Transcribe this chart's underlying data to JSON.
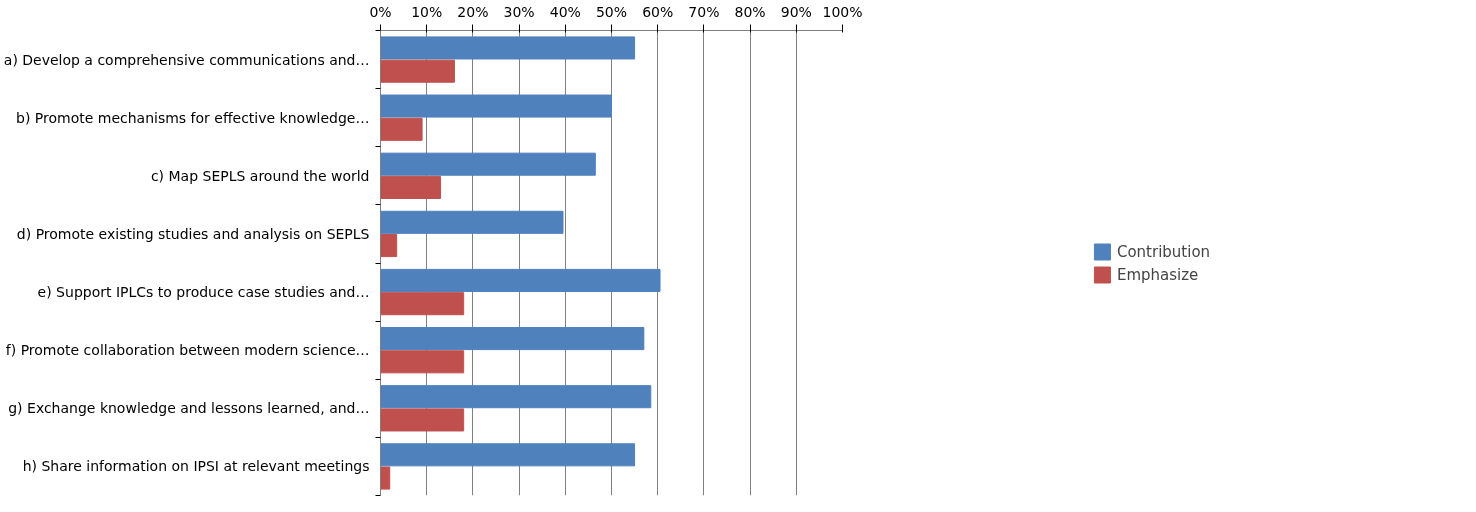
{
  "chart_data": {
    "type": "bar",
    "orientation": "horizontal",
    "categories": [
      "a) Develop a comprehensive communications and…",
      "b) Promote mechanisms for effective knowledge…",
      "c) Map SEPLS around the world",
      "d) Promote existing studies and analysis on SEPLS",
      "e) Support IPLCs to produce case studies and…",
      "f) Promote collaboration between modern science…",
      "g) Exchange knowledge and lessons learned, and…",
      "h) Share information on IPSI at relevant meetings"
    ],
    "series": [
      {
        "name": "Contribution",
        "color": "#4f81bd",
        "values": [
          55,
          50,
          46.5,
          39.5,
          60.5,
          57,
          58.5,
          55
        ]
      },
      {
        "name": "Emphasize",
        "color": "#c0504d",
        "values": [
          16,
          9,
          13,
          3.5,
          18,
          18,
          18,
          2
        ]
      }
    ],
    "xlim": [
      0,
      100
    ],
    "xticks": [
      {
        "value": 0,
        "label": "0%"
      },
      {
        "value": 10,
        "label": "10%"
      },
      {
        "value": 20,
        "label": "20%"
      },
      {
        "value": 30,
        "label": "30%"
      },
      {
        "value": 40,
        "label": "40%"
      },
      {
        "value": 50,
        "label": "50%"
      },
      {
        "value": 60,
        "label": "60%"
      },
      {
        "value": 70,
        "label": "70%"
      },
      {
        "value": 80,
        "label": "80%"
      },
      {
        "value": 90,
        "label": "90%"
      },
      {
        "value": 100,
        "label": "100%"
      }
    ],
    "grid": "x",
    "legend": "right"
  }
}
